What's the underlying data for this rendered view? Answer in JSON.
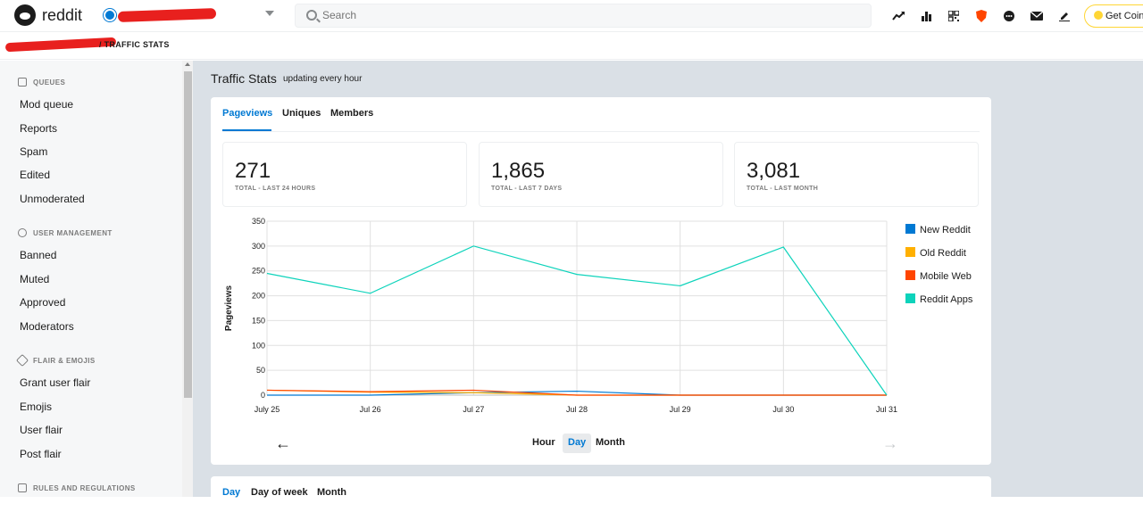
{
  "header": {
    "brand": "reddit",
    "search_placeholder": "Search",
    "coins_label": "Get Coins",
    "icons": [
      "trending-icon",
      "chart-icon",
      "qr-icon",
      "shield-icon",
      "chat-icon",
      "mail-icon",
      "pen-icon"
    ]
  },
  "breadcrumb": {
    "page": "/ TRAFFIC STATS"
  },
  "sidebar": {
    "sections": [
      {
        "title": "QUEUES",
        "icon": "queue-icon",
        "items": [
          "Mod queue",
          "Reports",
          "Spam",
          "Edited",
          "Unmoderated"
        ]
      },
      {
        "title": "USER MANAGEMENT",
        "icon": "user-icon",
        "items": [
          "Banned",
          "Muted",
          "Approved",
          "Moderators"
        ]
      },
      {
        "title": "FLAIR & EMOJIS",
        "icon": "tag-icon",
        "items": [
          "Grant user flair",
          "Emojis",
          "User flair",
          "Post flair"
        ]
      },
      {
        "title": "RULES AND REGULATIONS",
        "icon": "rules-icon",
        "items": []
      }
    ]
  },
  "main": {
    "title": "Traffic Stats",
    "subtitle": "updating every hour",
    "tabs": [
      "Pageviews",
      "Uniques",
      "Members"
    ],
    "active_tab": "Pageviews",
    "stats": [
      {
        "value": "271",
        "label": "TOTAL - LAST 24 HOURS"
      },
      {
        "value": "1,865",
        "label": "TOTAL - LAST 7 DAYS"
      },
      {
        "value": "3,081",
        "label": "TOTAL - LAST MONTH"
      }
    ],
    "granularity": [
      "Hour",
      "Day",
      "Month"
    ],
    "active_granularity": "Day",
    "bottom_tabs": [
      "Day",
      "Day of week",
      "Month"
    ]
  },
  "chart_data": {
    "type": "line",
    "ylabel": "Pageviews",
    "ylim": [
      0,
      350
    ],
    "yticks": [
      0,
      50,
      100,
      150,
      200,
      250,
      300,
      350
    ],
    "x": [
      "July 25",
      "Jul 26",
      "Jul 27",
      "Jul 28",
      "Jul 29",
      "Jul 30",
      "Jul 31"
    ],
    "series": [
      {
        "name": "New Reddit",
        "color": "#0079d3",
        "values": [
          0,
          0,
          5,
          8,
          0,
          0,
          0
        ]
      },
      {
        "name": "Old Reddit",
        "color": "#ffb000",
        "values": [
          10,
          6,
          5,
          0,
          0,
          0,
          0
        ]
      },
      {
        "name": "Mobile Web",
        "color": "#ff4500",
        "values": [
          10,
          7,
          10,
          0,
          0,
          0,
          0
        ]
      },
      {
        "name": "Reddit Apps",
        "color": "#0dd3bb",
        "values": [
          245,
          205,
          300,
          243,
          220,
          298,
          0
        ]
      }
    ],
    "legend": "right",
    "grid": true
  }
}
